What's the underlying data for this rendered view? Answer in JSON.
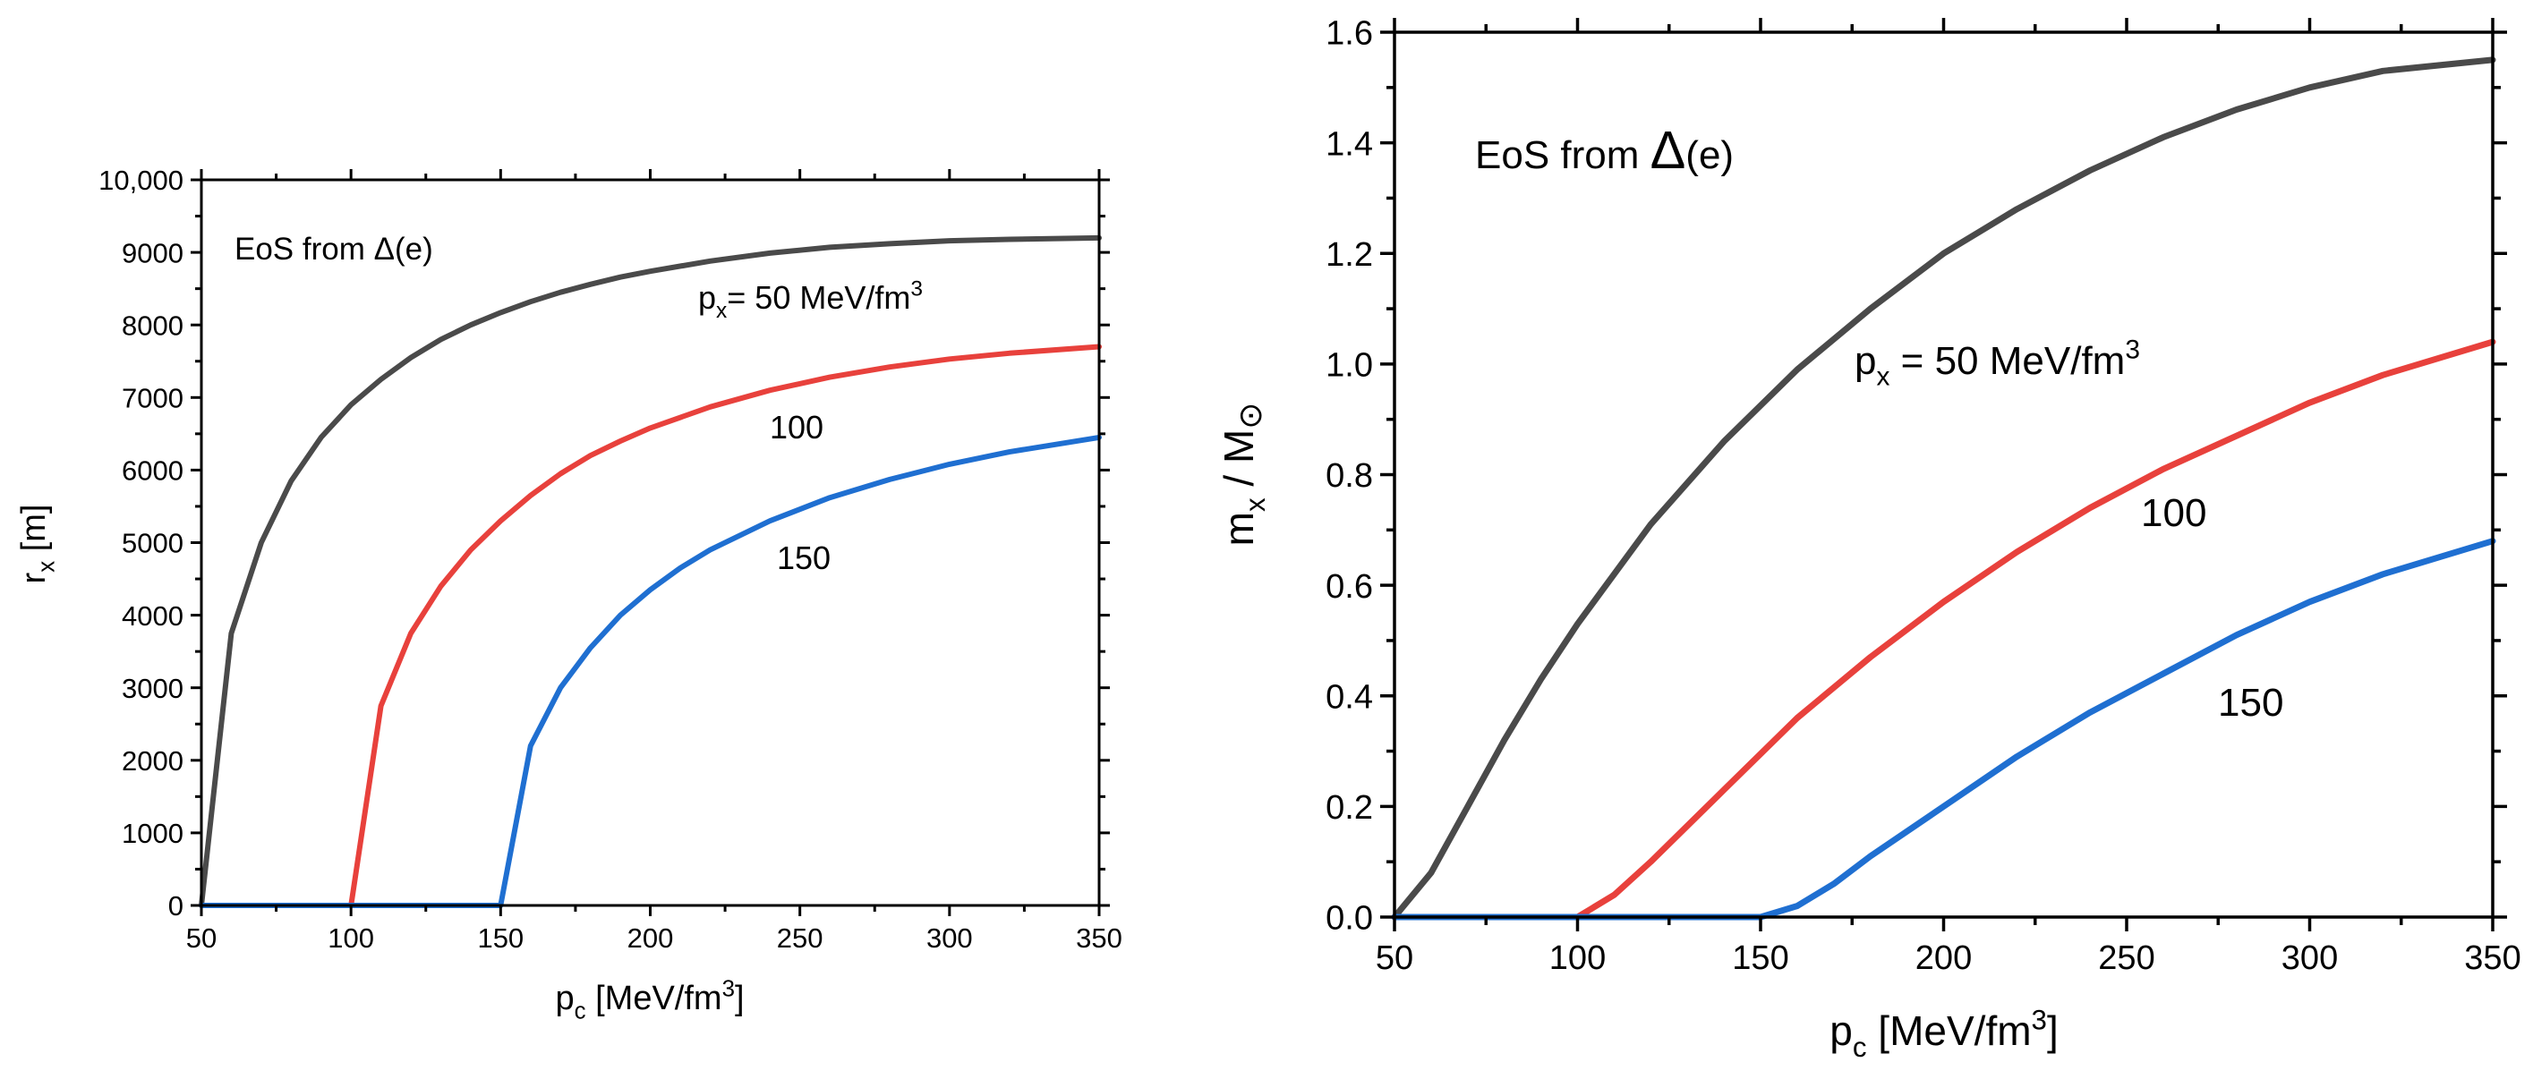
{
  "chart_data": [
    {
      "type": "line",
      "title": "",
      "annotation": "EoS from Δ(e)",
      "xlabel": {
        "main": "p",
        "sub": "c",
        "unit_pre": " [MeV/fm",
        "sup": "3",
        "unit_post": "]"
      },
      "ylabel": {
        "main": "r",
        "sub": "x",
        "unit": " [m]"
      },
      "xlim": [
        50,
        350
      ],
      "ylim": [
        0,
        10000
      ],
      "xticks": [
        50,
        100,
        150,
        200,
        250,
        300,
        350
      ],
      "yticks": [
        0,
        1000,
        2000,
        3000,
        4000,
        5000,
        6000,
        7000,
        8000,
        9000,
        10000
      ],
      "ytick_labels": [
        "0",
        "1000",
        "2000",
        "3000",
        "4000",
        "5000",
        "6000",
        "7000",
        "8000",
        "9000",
        "10,000"
      ],
      "series": [
        {
          "name": "50",
          "label": {
            "pre": "p",
            "sub": "x",
            "text": "= 50 MeV/fm",
            "sup": "3"
          },
          "color": "#4a4a4a",
          "x": [
            50,
            60,
            70,
            80,
            90,
            100,
            110,
            120,
            130,
            140,
            150,
            160,
            170,
            180,
            190,
            200,
            220,
            240,
            260,
            280,
            300,
            320,
            350
          ],
          "y": [
            0,
            3750,
            5000,
            5850,
            6450,
            6900,
            7250,
            7550,
            7800,
            8000,
            8170,
            8320,
            8450,
            8560,
            8660,
            8740,
            8880,
            8990,
            9070,
            9120,
            9160,
            9180,
            9200
          ]
        },
        {
          "name": "100",
          "label": {
            "text": "100"
          },
          "color": "#e8413c",
          "x": [
            50,
            100,
            110,
            120,
            130,
            140,
            150,
            160,
            170,
            180,
            190,
            200,
            220,
            240,
            260,
            280,
            300,
            320,
            350
          ],
          "y": [
            0,
            0,
            2750,
            3750,
            4400,
            4900,
            5300,
            5650,
            5950,
            6200,
            6400,
            6580,
            6870,
            7100,
            7280,
            7420,
            7530,
            7610,
            7700
          ]
        },
        {
          "name": "150",
          "label": {
            "text": "150"
          },
          "color": "#1f6fd1",
          "x": [
            50,
            150,
            160,
            170,
            180,
            190,
            200,
            210,
            220,
            240,
            260,
            280,
            300,
            320,
            350
          ],
          "y": [
            0,
            0,
            2200,
            3000,
            3550,
            4000,
            4350,
            4650,
            4900,
            5300,
            5620,
            5870,
            6080,
            6250,
            6450
          ]
        }
      ]
    },
    {
      "type": "line",
      "title": "",
      "annotation": {
        "pre": "EoS from ",
        "delta": "Δ",
        "post": "(e)"
      },
      "xlabel": {
        "main": "p",
        "sub": "c",
        "unit_pre": " [MeV/fm",
        "sup": "3",
        "unit_post": "]"
      },
      "ylabel": {
        "main": "m",
        "sub": "x",
        "mid": " / M",
        "sun": "⊙"
      },
      "xlim": [
        50,
        350
      ],
      "ylim": [
        0,
        1.6
      ],
      "xticks": [
        50,
        100,
        150,
        200,
        250,
        300,
        350
      ],
      "yticks": [
        0,
        0.2,
        0.4,
        0.6,
        0.8,
        1.0,
        1.2,
        1.4,
        1.6
      ],
      "ytick_labels": [
        "0.0",
        "0.2",
        "0.4",
        "0.6",
        "0.8",
        "1.0",
        "1.2",
        "1.4",
        "1.6"
      ],
      "series": [
        {
          "name": "50",
          "label": {
            "pre": "p",
            "sub": "x",
            "text": " = 50 MeV/fm",
            "sup": "3"
          },
          "color": "#4a4a4a",
          "x": [
            50,
            60,
            70,
            80,
            90,
            100,
            120,
            140,
            160,
            180,
            200,
            220,
            240,
            260,
            280,
            300,
            320,
            350
          ],
          "y": [
            0,
            0.08,
            0.2,
            0.32,
            0.43,
            0.53,
            0.71,
            0.86,
            0.99,
            1.1,
            1.2,
            1.28,
            1.35,
            1.41,
            1.46,
            1.5,
            1.53,
            1.55
          ]
        },
        {
          "name": "100",
          "label": {
            "text": "100"
          },
          "color": "#e8413c",
          "x": [
            50,
            100,
            110,
            120,
            140,
            160,
            180,
            200,
            220,
            240,
            260,
            280,
            300,
            320,
            350
          ],
          "y": [
            0,
            0,
            0.04,
            0.1,
            0.23,
            0.36,
            0.47,
            0.57,
            0.66,
            0.74,
            0.81,
            0.87,
            0.93,
            0.98,
            1.04
          ]
        },
        {
          "name": "150",
          "label": {
            "text": "150"
          },
          "color": "#1f6fd1",
          "x": [
            50,
            150,
            160,
            170,
            180,
            200,
            220,
            240,
            260,
            280,
            300,
            320,
            350
          ],
          "y": [
            0,
            0,
            0.02,
            0.06,
            0.11,
            0.2,
            0.29,
            0.37,
            0.44,
            0.51,
            0.57,
            0.62,
            0.68
          ]
        }
      ]
    }
  ]
}
